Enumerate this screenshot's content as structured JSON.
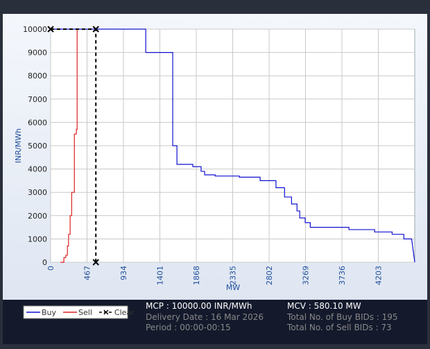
{
  "chart_data": {
    "type": "line",
    "x_label": "MW",
    "y_label": "INR/MWh",
    "xlim": [
      0,
      4670
    ],
    "ylim": [
      0,
      10000
    ],
    "xticks": [
      0,
      467,
      934,
      1401,
      1868,
      2335,
      2802,
      3269,
      3736,
      4203
    ],
    "yticks": [
      0,
      1000,
      2000,
      3000,
      4000,
      5000,
      6000,
      7000,
      8000,
      9000,
      10000
    ],
    "grid": true,
    "series": [
      {
        "name": "Buy",
        "color": "#1010d0",
        "x": [
          0,
          1220,
          1220,
          1566,
          1566,
          1620,
          1620,
          1646,
          1824,
          1824,
          1930,
          1930,
          1975,
          1975,
          2110,
          2110,
          2420,
          2420,
          2687,
          2687,
          2890,
          2890,
          3000,
          3000,
          3090,
          3090,
          3160,
          3160,
          3195,
          3195,
          3265,
          3265,
          3330,
          3330,
          3826,
          3826,
          4155,
          4155,
          4380,
          4380,
          4530,
          4530,
          4630,
          4670
        ],
        "values": [
          10000,
          10000,
          9000,
          9000,
          5000,
          5000,
          4200,
          4200,
          4200,
          4100,
          4100,
          3900,
          3900,
          3750,
          3750,
          3700,
          3700,
          3650,
          3650,
          3500,
          3500,
          3200,
          3200,
          2800,
          2800,
          2500,
          2500,
          2200,
          2200,
          1900,
          1900,
          1700,
          1700,
          1500,
          1500,
          1400,
          1400,
          1300,
          1300,
          1200,
          1200,
          1000,
          1000,
          0
        ]
      },
      {
        "name": "Sell",
        "color": "#e02020",
        "x": [
          125,
          170,
          170,
          195,
          195,
          215,
          215,
          230,
          230,
          250,
          250,
          270,
          270,
          305,
          305,
          330,
          330,
          340,
          340
        ],
        "values": [
          0,
          0,
          200,
          200,
          300,
          300,
          700,
          700,
          1200,
          1200,
          2000,
          2000,
          3000,
          3000,
          5500,
          5500,
          5700,
          5700,
          10000
        ]
      },
      {
        "name": "Clear",
        "color": "#000000",
        "dashed": true,
        "markers": true,
        "x": [
          0,
          580.1,
          580.1
        ],
        "values": [
          10000,
          10000,
          0
        ]
      }
    ]
  },
  "info": {
    "mcp": "MCP : 10000.00 INR/MWh",
    "delivery": "Delivery Date : 16 Mar 2026",
    "period": "Period :  00:00-00:15",
    "mcv": "MCV : 580.10 MW",
    "buy_bids": "Total No. of Buy BIDs : 195",
    "sell_bids": "Total No. of Sell BIDs : 73"
  }
}
